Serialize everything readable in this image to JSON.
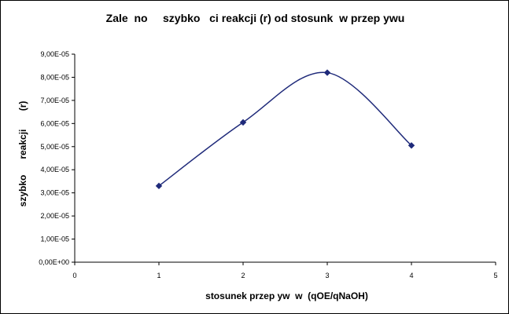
{
  "chart_data": {
    "type": "line",
    "title": "Zale  no     szybko   ci reakcji (r) od stosunk  w przep ywu",
    "xlabel": "stosunek przep yw  w  (qOE/qNaOH)",
    "ylabel": "szybko      reakcji       (r)",
    "xlim": [
      0,
      5
    ],
    "ylim": [
      0,
      9e-05
    ],
    "x_ticks": [
      "0",
      "1",
      "2",
      "3",
      "4",
      "5"
    ],
    "y_ticks": [
      "0,00E+00",
      "1,00E-05",
      "2,00E-05",
      "3,00E-05",
      "4,00E-05",
      "5,00E-05",
      "6,00E-05",
      "7,00E-05",
      "8,00E-05",
      "9,00E-05"
    ],
    "grid": false,
    "legend": "none",
    "smooth": true,
    "series": [
      {
        "x": [
          1,
          2,
          3,
          4
        ],
        "values": [
          3.3e-05,
          6.05e-05,
          8.2e-05,
          5.05e-05
        ],
        "color": "#1f2a7a"
      }
    ]
  }
}
